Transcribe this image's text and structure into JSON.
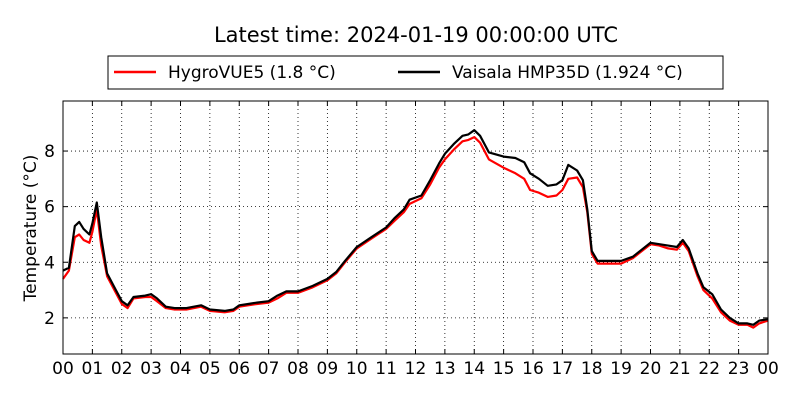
{
  "chart_data": {
    "type": "line",
    "title": "Latest time: 2024-01-19 00:00:00 UTC",
    "ylabel": "Temperature (°C)",
    "xlabel": "",
    "xlim": [
      0,
      24
    ],
    "ylim": [
      0.7,
      9.8
    ],
    "x_ticks": [
      "00",
      "01",
      "02",
      "03",
      "04",
      "05",
      "06",
      "07",
      "08",
      "09",
      "10",
      "11",
      "12",
      "13",
      "14",
      "15",
      "16",
      "17",
      "18",
      "19",
      "20",
      "21",
      "22",
      "23",
      "00"
    ],
    "y_ticks": [
      2,
      4,
      6,
      8
    ],
    "grid": true,
    "legend_position": "top-center",
    "series": [
      {
        "name": "HygroVUE5 (1.8 °C)",
        "color": "#ff0000",
        "points": [
          [
            0.0,
            3.4
          ],
          [
            0.2,
            3.7
          ],
          [
            0.4,
            4.9
          ],
          [
            0.55,
            5.0
          ],
          [
            0.7,
            4.8
          ],
          [
            0.9,
            4.7
          ],
          [
            1.0,
            5.1
          ],
          [
            1.15,
            5.9
          ],
          [
            1.3,
            4.6
          ],
          [
            1.5,
            3.5
          ],
          [
            1.8,
            2.9
          ],
          [
            2.0,
            2.5
          ],
          [
            2.2,
            2.35
          ],
          [
            2.4,
            2.7
          ],
          [
            2.8,
            2.75
          ],
          [
            3.0,
            2.75
          ],
          [
            3.2,
            2.6
          ],
          [
            3.5,
            2.35
          ],
          [
            3.8,
            2.3
          ],
          [
            4.2,
            2.3
          ],
          [
            4.7,
            2.4
          ],
          [
            5.0,
            2.25
          ],
          [
            5.5,
            2.2
          ],
          [
            5.8,
            2.25
          ],
          [
            6.0,
            2.4
          ],
          [
            6.3,
            2.45
          ],
          [
            6.6,
            2.5
          ],
          [
            7.0,
            2.55
          ],
          [
            7.3,
            2.7
          ],
          [
            7.6,
            2.9
          ],
          [
            8.0,
            2.9
          ],
          [
            8.5,
            3.1
          ],
          [
            9.0,
            3.35
          ],
          [
            9.3,
            3.6
          ],
          [
            9.6,
            4.0
          ],
          [
            10.0,
            4.5
          ],
          [
            10.5,
            4.85
          ],
          [
            11.0,
            5.2
          ],
          [
            11.3,
            5.5
          ],
          [
            11.6,
            5.8
          ],
          [
            11.8,
            6.1
          ],
          [
            12.2,
            6.3
          ],
          [
            12.5,
            6.8
          ],
          [
            12.8,
            7.4
          ],
          [
            13.0,
            7.7
          ],
          [
            13.3,
            8.05
          ],
          [
            13.6,
            8.35
          ],
          [
            13.8,
            8.4
          ],
          [
            14.0,
            8.5
          ],
          [
            14.2,
            8.3
          ],
          [
            14.5,
            7.7
          ],
          [
            15.0,
            7.4
          ],
          [
            15.4,
            7.2
          ],
          [
            15.7,
            7.0
          ],
          [
            15.9,
            6.6
          ],
          [
            16.2,
            6.5
          ],
          [
            16.5,
            6.35
          ],
          [
            16.8,
            6.4
          ],
          [
            17.0,
            6.6
          ],
          [
            17.2,
            7.0
          ],
          [
            17.5,
            7.05
          ],
          [
            17.7,
            6.7
          ],
          [
            17.85,
            5.8
          ],
          [
            18.0,
            4.3
          ],
          [
            18.2,
            3.95
          ],
          [
            18.6,
            3.95
          ],
          [
            19.0,
            3.95
          ],
          [
            19.4,
            4.15
          ],
          [
            19.7,
            4.4
          ],
          [
            20.0,
            4.65
          ],
          [
            20.3,
            4.6
          ],
          [
            20.6,
            4.5
          ],
          [
            20.9,
            4.45
          ],
          [
            21.1,
            4.7
          ],
          [
            21.3,
            4.4
          ],
          [
            21.6,
            3.5
          ],
          [
            21.8,
            3.0
          ],
          [
            22.1,
            2.7
          ],
          [
            22.4,
            2.2
          ],
          [
            22.7,
            1.9
          ],
          [
            23.0,
            1.75
          ],
          [
            23.3,
            1.75
          ],
          [
            23.5,
            1.65
          ],
          [
            23.7,
            1.8
          ],
          [
            24.0,
            1.9
          ]
        ]
      },
      {
        "name": "Vaisala HMP35D (1.924 °C)",
        "color": "#000000",
        "points": [
          [
            0.0,
            3.7
          ],
          [
            0.2,
            3.8
          ],
          [
            0.4,
            5.3
          ],
          [
            0.55,
            5.45
          ],
          [
            0.7,
            5.2
          ],
          [
            0.9,
            5.0
          ],
          [
            1.0,
            5.4
          ],
          [
            1.15,
            6.15
          ],
          [
            1.3,
            4.9
          ],
          [
            1.5,
            3.6
          ],
          [
            1.8,
            3.0
          ],
          [
            2.0,
            2.6
          ],
          [
            2.2,
            2.45
          ],
          [
            2.4,
            2.75
          ],
          [
            2.8,
            2.8
          ],
          [
            3.0,
            2.85
          ],
          [
            3.2,
            2.7
          ],
          [
            3.5,
            2.4
          ],
          [
            3.8,
            2.35
          ],
          [
            4.2,
            2.35
          ],
          [
            4.7,
            2.45
          ],
          [
            5.0,
            2.3
          ],
          [
            5.5,
            2.25
          ],
          [
            5.8,
            2.3
          ],
          [
            6.0,
            2.45
          ],
          [
            6.3,
            2.5
          ],
          [
            6.6,
            2.55
          ],
          [
            7.0,
            2.6
          ],
          [
            7.3,
            2.8
          ],
          [
            7.6,
            2.95
          ],
          [
            8.0,
            2.95
          ],
          [
            8.5,
            3.15
          ],
          [
            9.0,
            3.4
          ],
          [
            9.3,
            3.65
          ],
          [
            9.6,
            4.05
          ],
          [
            10.0,
            4.55
          ],
          [
            10.5,
            4.9
          ],
          [
            11.0,
            5.25
          ],
          [
            11.3,
            5.6
          ],
          [
            11.6,
            5.9
          ],
          [
            11.8,
            6.25
          ],
          [
            12.2,
            6.4
          ],
          [
            12.5,
            6.95
          ],
          [
            12.8,
            7.55
          ],
          [
            13.0,
            7.9
          ],
          [
            13.3,
            8.25
          ],
          [
            13.6,
            8.55
          ],
          [
            13.8,
            8.6
          ],
          [
            14.0,
            8.75
          ],
          [
            14.2,
            8.55
          ],
          [
            14.5,
            7.95
          ],
          [
            15.0,
            7.8
          ],
          [
            15.4,
            7.75
          ],
          [
            15.7,
            7.6
          ],
          [
            15.9,
            7.2
          ],
          [
            16.2,
            7.0
          ],
          [
            16.5,
            6.75
          ],
          [
            16.8,
            6.8
          ],
          [
            17.0,
            6.95
          ],
          [
            17.2,
            7.5
          ],
          [
            17.5,
            7.3
          ],
          [
            17.7,
            6.95
          ],
          [
            17.85,
            5.9
          ],
          [
            18.0,
            4.4
          ],
          [
            18.2,
            4.05
          ],
          [
            18.6,
            4.05
          ],
          [
            19.0,
            4.05
          ],
          [
            19.4,
            4.2
          ],
          [
            19.7,
            4.45
          ],
          [
            20.0,
            4.7
          ],
          [
            20.3,
            4.65
          ],
          [
            20.6,
            4.6
          ],
          [
            20.9,
            4.55
          ],
          [
            21.1,
            4.8
          ],
          [
            21.3,
            4.5
          ],
          [
            21.6,
            3.6
          ],
          [
            21.8,
            3.1
          ],
          [
            22.1,
            2.85
          ],
          [
            22.4,
            2.3
          ],
          [
            22.7,
            2.0
          ],
          [
            23.0,
            1.8
          ],
          [
            23.3,
            1.8
          ],
          [
            23.5,
            1.75
          ],
          [
            23.7,
            1.9
          ],
          [
            24.0,
            1.95
          ]
        ]
      }
    ]
  }
}
